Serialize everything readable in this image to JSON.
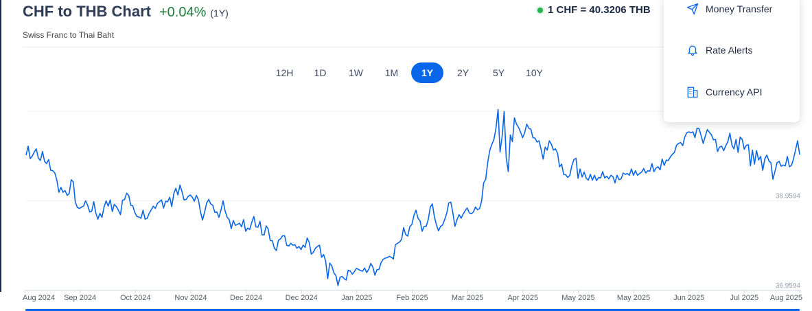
{
  "header": {
    "title": "CHF to THB Chart",
    "change": "+0.04%",
    "period": "(1Y)",
    "subtitle": "Swiss Franc to Thai Baht",
    "rate": "1 CHF = 40.3206 THB"
  },
  "ranges": {
    "items": [
      "12H",
      "1D",
      "1W",
      "1M",
      "1Y",
      "2Y",
      "5Y",
      "10Y"
    ],
    "active": "1Y"
  },
  "menu": {
    "items": [
      {
        "label": "Money Transfer",
        "icon": "send-icon"
      },
      {
        "label": "Rate Alerts",
        "icon": "bell-icon"
      },
      {
        "label": "Currency API",
        "icon": "building-icon"
      }
    ]
  },
  "colors": {
    "line": "#0a66e8",
    "accent": "#0a66e8",
    "positive": "#1e7a3c",
    "live": "#25b34b"
  },
  "chart_data": {
    "type": "line",
    "ylim": [
      36.9594,
      40.9594
    ],
    "grid": true,
    "y_ticks": [
      36.9594,
      38.9594
    ],
    "x_ticks": [
      "Aug 2024",
      "Sep 2024",
      "Oct 2024",
      "Nov 2024",
      "Dec 2024",
      "Dec 2024",
      "Jan 2025",
      "Feb 2025",
      "Mar 2025",
      "Apr 2025",
      "May 2025",
      "May 2025",
      "Jun 2025",
      "Jul 2025",
      "Aug 2025"
    ],
    "series": [
      {
        "values": [
          39.98,
          40.18,
          39.9,
          39.96,
          40.05,
          40.12,
          39.91,
          39.86,
          40.06,
          39.84,
          39.79,
          39.88,
          39.64,
          39.63,
          39.58,
          39.42,
          39.15,
          39.26,
          39.15,
          39.19,
          39.08,
          39.12,
          39.43,
          39.38,
          38.93,
          38.81,
          38.79,
          38.82,
          38.84,
          38.96,
          38.86,
          38.71,
          38.73,
          38.94,
          38.69,
          38.55,
          38.68,
          38.59,
          38.82,
          38.96,
          38.84,
          38.98,
          38.72,
          38.88,
          38.83,
          38.75,
          38.65,
          38.97,
          38.99,
          39.13,
          39.08,
          38.86,
          38.85,
          38.7,
          38.61,
          38.6,
          38.57,
          38.75,
          38.55,
          38.57,
          38.68,
          38.76,
          38.84,
          38.79,
          38.9,
          38.94,
          38.98,
          38.8,
          38.95,
          38.94,
          39.04,
          38.83,
          39.12,
          39.24,
          39.09,
          39.31,
          39.16,
          38.98,
          38.99,
          39.06,
          39.09,
          39.04,
          38.95,
          39.08,
          38.98,
          38.71,
          38.53,
          38.71,
          38.91,
          38.99,
          38.89,
          38.86,
          38.7,
          38.71,
          38.59,
          38.76,
          38.96,
          38.73,
          38.59,
          38.54,
          38.34,
          38.52,
          38.41,
          38.43,
          38.46,
          38.38,
          38.54,
          38.28,
          38.35,
          38.32,
          38.48,
          38.61,
          38.38,
          38.37,
          38.5,
          38.2,
          38.2,
          38.4,
          38.33,
          38.07,
          38.07,
          37.9,
          37.85,
          38.08,
          38.11,
          38.18,
          38.18,
          37.97,
          37.95,
          38.01,
          37.97,
          37.98,
          37.9,
          37.94,
          37.87,
          37.97,
          37.92,
          38.13,
          38.03,
          37.77,
          37.81,
          37.9,
          37.94,
          37.97,
          37.7,
          37.76,
          37.61,
          37.22,
          37.57,
          37.51,
          37.35,
          37.29,
          37.07,
          37.25,
          37.27,
          37.22,
          37.19,
          37.41,
          37.39,
          37.32,
          37.38,
          37.45,
          37.43,
          37.4,
          37.39,
          37.46,
          37.36,
          37.43,
          37.56,
          37.48,
          37.3,
          37.42,
          37.43,
          37.58,
          37.65,
          37.68,
          37.69,
          37.72,
          37.7,
          37.66,
          37.98,
          38.01,
          38.04,
          38.1,
          38.36,
          38.21,
          38.17,
          38.38,
          38.43,
          38.63,
          38.75,
          38.57,
          38.51,
          38.28,
          38.39,
          38.39,
          38.54,
          38.82,
          38.89,
          38.6,
          38.42,
          38.29,
          38.39,
          38.42,
          38.54,
          38.68,
          38.91,
          38.93,
          38.69,
          38.39,
          38.54,
          38.65,
          38.57,
          38.66,
          38.74,
          38.8,
          38.69,
          38.67,
          38.71,
          38.82,
          38.76,
          38.79,
          38.95,
          39.36,
          39.44,
          39.82,
          40.09,
          40.22,
          40.33,
          40.58,
          41.0,
          40.05,
          40.39,
          40.95,
          39.92,
          39.61,
          40.43,
          40.28,
          40.81,
          40.67,
          40.6,
          40.49,
          40.37,
          40.48,
          40.67,
          40.58,
          40.56,
          40.37,
          40.36,
          40.27,
          40.3,
          40.11,
          39.89,
          40.16,
          40.09,
          40.3,
          40.22,
          40.09,
          40.12,
          40.02,
          39.72,
          39.78,
          39.55,
          39.54,
          39.48,
          39.53,
          39.75,
          39.88,
          39.91,
          39.46,
          39.67,
          39.49,
          39.6,
          39.46,
          39.42,
          39.55,
          39.42,
          39.53,
          39.41,
          39.48,
          39.47,
          39.61,
          39.47,
          39.51,
          39.45,
          39.53,
          39.5,
          39.36,
          39.53,
          39.43,
          39.45,
          39.58,
          39.55,
          39.57,
          39.53,
          39.67,
          39.53,
          39.63,
          39.53,
          39.57,
          39.6,
          39.68,
          39.58,
          39.63,
          39.62,
          39.79,
          39.61,
          39.69,
          39.72,
          39.65,
          39.89,
          39.75,
          39.87,
          39.86,
          39.94,
          40.0,
          40.04,
          40.2,
          40.24,
          40.26,
          40.19,
          40.38,
          40.48,
          40.5,
          40.48,
          40.5,
          40.37,
          40.58,
          40.57,
          40.41,
          40.24,
          40.4,
          40.55,
          40.49,
          40.43,
          40.32,
          40.33,
          40.06,
          40.16,
          40.18,
          40.08,
          40.19,
          40.28,
          40.47,
          40.2,
          40.12,
          40.33,
          40.04,
          40.38,
          40.33,
          40.11,
          40.2,
          40.21,
          39.74,
          40.09,
          39.78,
          40.08,
          39.87,
          39.95,
          39.64,
          39.89,
          39.98,
          39.85,
          39.81,
          39.44,
          39.62,
          39.81,
          39.84,
          39.73,
          39.76,
          39.74,
          39.95,
          39.72,
          39.75,
          39.89,
          40.09,
          40.3,
          39.99
        ]
      }
    ]
  }
}
